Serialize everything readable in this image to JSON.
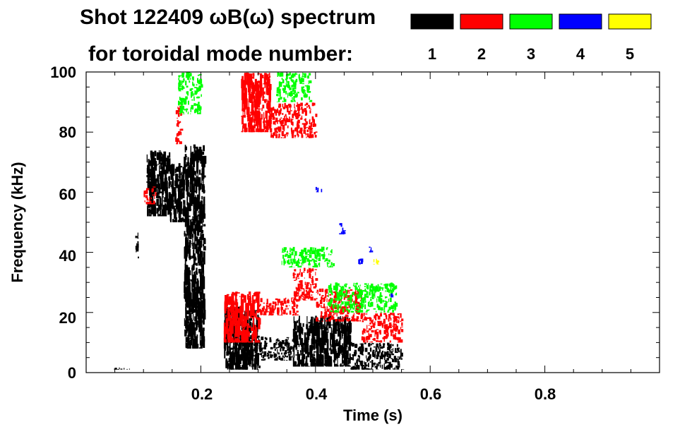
{
  "chart_data": {
    "type": "heatmap",
    "title": "Shot 122409 ωB(ω) spectrum",
    "subtitle": "for toroidal mode number:",
    "xlabel": "Time (s)",
    "ylabel": "Frequency (kHz)",
    "xlim": [
      0.0,
      1.0
    ],
    "ylim": [
      0,
      100
    ],
    "x_ticks": [
      0.2,
      0.4,
      0.6,
      0.8
    ],
    "x_tick_labels": [
      "0.2",
      "0.4",
      "0.6",
      "0.8"
    ],
    "y_ticks": [
      0,
      20,
      40,
      60,
      80,
      100
    ],
    "y_tick_labels": [
      "0",
      "20",
      "40",
      "60",
      "80",
      "100"
    ],
    "grid": false,
    "legend_placement": "top-right",
    "legend": [
      {
        "label": "1",
        "color": "#000000"
      },
      {
        "label": "2",
        "color": "#ff0000"
      },
      {
        "label": "3",
        "color": "#00ff00"
      },
      {
        "label": "4",
        "color": "#0000ff"
      },
      {
        "label": "5",
        "color": "#ffff00"
      }
    ],
    "series": [
      {
        "mode": "1",
        "color": "#000000",
        "regions": [
          {
            "t0": 0.105,
            "t1": 0.145,
            "f0": 52,
            "f1": 74
          },
          {
            "t0": 0.145,
            "t1": 0.17,
            "f0": 50,
            "f1": 70
          },
          {
            "t0": 0.17,
            "t1": 0.205,
            "f0": 8,
            "f1": 76
          },
          {
            "t0": 0.085,
            "t1": 0.09,
            "f0": 38,
            "f1": 47
          },
          {
            "t0": 0.24,
            "t1": 0.3,
            "f0": 1,
            "f1": 22
          },
          {
            "t0": 0.3,
            "t1": 0.36,
            "f0": 4,
            "f1": 12
          },
          {
            "t0": 0.36,
            "t1": 0.46,
            "f0": 2,
            "f1": 19
          },
          {
            "t0": 0.46,
            "t1": 0.55,
            "f0": 1,
            "f1": 10
          },
          {
            "t0": 0.04,
            "t1": 0.08,
            "f0": 1,
            "f1": 2
          }
        ]
      },
      {
        "mode": "2",
        "color": "#ff0000",
        "regions": [
          {
            "t0": 0.27,
            "t1": 0.32,
            "f0": 80,
            "f1": 100
          },
          {
            "t0": 0.32,
            "t1": 0.4,
            "f0": 78,
            "f1": 90
          },
          {
            "t0": 0.24,
            "t1": 0.3,
            "f0": 10,
            "f1": 27
          },
          {
            "t0": 0.3,
            "t1": 0.37,
            "f0": 19,
            "f1": 25
          },
          {
            "t0": 0.36,
            "t1": 0.4,
            "f0": 24,
            "f1": 35
          },
          {
            "t0": 0.4,
            "t1": 0.48,
            "f0": 17,
            "f1": 28
          },
          {
            "t0": 0.48,
            "t1": 0.55,
            "f0": 10,
            "f1": 20
          },
          {
            "t0": 0.1,
            "t1": 0.12,
            "f0": 56,
            "f1": 62
          },
          {
            "t0": 0.155,
            "t1": 0.165,
            "f0": 76,
            "f1": 90
          }
        ]
      },
      {
        "mode": "3",
        "color": "#00ff00",
        "regions": [
          {
            "t0": 0.16,
            "t1": 0.2,
            "f0": 86,
            "f1": 100
          },
          {
            "t0": 0.33,
            "t1": 0.39,
            "f0": 90,
            "f1": 100
          },
          {
            "t0": 0.34,
            "t1": 0.43,
            "f0": 35,
            "f1": 42
          },
          {
            "t0": 0.42,
            "t1": 0.54,
            "f0": 20,
            "f1": 30
          }
        ]
      },
      {
        "mode": "4",
        "color": "#0000ff",
        "regions": [
          {
            "t0": 0.4,
            "t1": 0.41,
            "f0": 60,
            "f1": 62
          },
          {
            "t0": 0.44,
            "t1": 0.45,
            "f0": 46,
            "f1": 50
          },
          {
            "t0": 0.47,
            "t1": 0.48,
            "f0": 36,
            "f1": 38
          },
          {
            "t0": 0.49,
            "t1": 0.5,
            "f0": 40,
            "f1": 42
          },
          {
            "t0": 0.53,
            "t1": 0.535,
            "f0": 25,
            "f1": 27
          }
        ]
      },
      {
        "mode": "5",
        "color": "#ffff00",
        "regions": [
          {
            "t0": 0.5,
            "t1": 0.51,
            "f0": 36,
            "f1": 38
          }
        ]
      }
    ]
  }
}
